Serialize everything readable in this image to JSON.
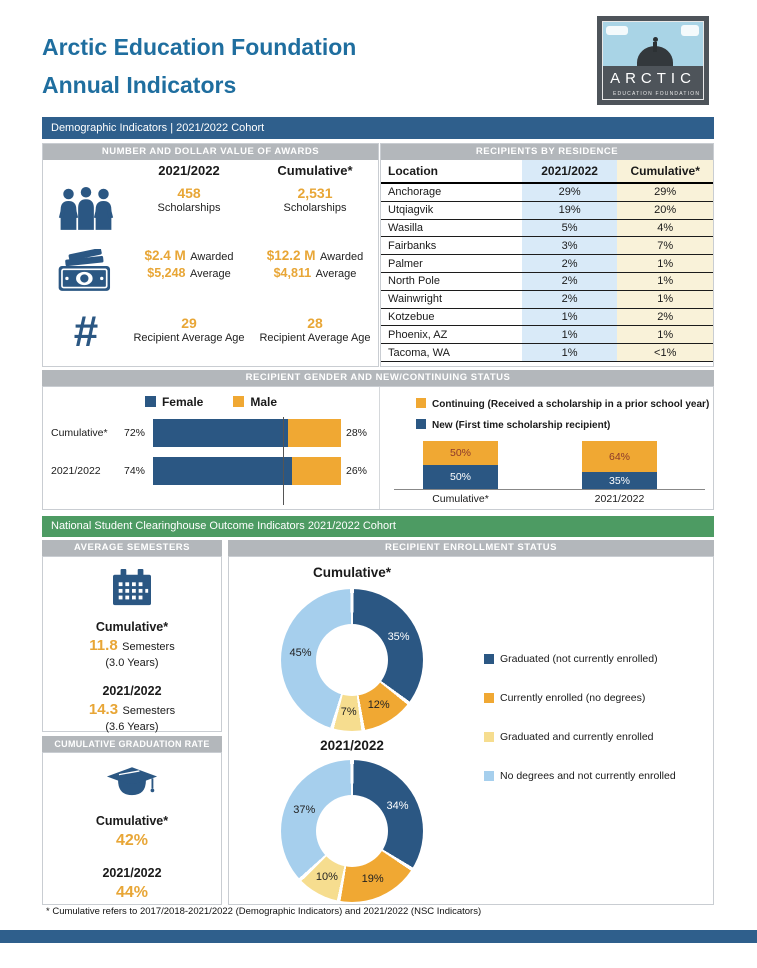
{
  "header": {
    "title_line1": "Arctic Education Foundation",
    "title_line2": "Annual Indicators",
    "logo_text": "ARCTIC",
    "logo_subtext": "EDUCATION FOUNDATION"
  },
  "banners": {
    "demographic": "Demographic Indicators | 2021/2022 Cohort",
    "gender": "RECIPIENT GENDER AND NEW/CONTINUING STATUS",
    "nsc": "National Student Clearinghouse Outcome Indicators 2021/2022 Cohort"
  },
  "awards": {
    "header": "NUMBER AND DOLLAR VALUE OF AWARDS",
    "col_current": "2021/2022",
    "col_cumulative": "Cumulative*",
    "scholarships": {
      "current_value": "458",
      "current_label": "Scholarships",
      "cumulative_value": "2,531",
      "cumulative_label": "Scholarships"
    },
    "dollars": {
      "current_amount": "$2.4 M",
      "current_amount_label": "Awarded",
      "current_avg": "$5,248",
      "current_avg_label": "Average",
      "cumulative_amount": "$12.2 M",
      "cumulative_amount_label": "Awarded",
      "cumulative_avg": "$4,811",
      "cumulative_avg_label": "Average"
    },
    "age": {
      "current_value": "29",
      "current_label": "Recipient Average Age",
      "cumulative_value": "28",
      "cumulative_label": "Recipient Average Age"
    }
  },
  "residence": {
    "header": "RECIPIENTS BY RESIDENCE",
    "columns": [
      "Location",
      "2021/2022",
      "Cumulative*"
    ],
    "rows": [
      [
        "Anchorage",
        "29%",
        "29%"
      ],
      [
        "Utqiagvik",
        "19%",
        "20%"
      ],
      [
        "Wasilla",
        "5%",
        "4%"
      ],
      [
        "Fairbanks",
        "3%",
        "7%"
      ],
      [
        "Palmer",
        "2%",
        "1%"
      ],
      [
        "North Pole",
        "2%",
        "1%"
      ],
      [
        "Wainwright",
        "2%",
        "1%"
      ],
      [
        "Kotzebue",
        "1%",
        "2%"
      ],
      [
        "Phoenix, AZ",
        "1%",
        "1%"
      ],
      [
        "Tacoma, WA",
        "1%",
        "<1%"
      ]
    ]
  },
  "avg_header": "AVERAGE SEMESTERS",
  "semesters": {
    "cum_label": "Cumulative*",
    "cum_value": "11.8",
    "cum_unit": "Semesters",
    "cum_years": "(3.0 Years)",
    "y1_label": "2021/2022",
    "y1_value": "14.3",
    "y1_unit": "Semesters",
    "y1_years": "(3.6 Years)"
  },
  "graduation": {
    "header": "CUMULATIVE GRADUATION RATE",
    "cum_label": "Cumulative*",
    "cum_value": "42%",
    "y1_label": "2021/2022",
    "y1_value": "44%"
  },
  "enrollment_header": "RECIPIENT ENROLLMENT STATUS",
  "footnote": "* Cumulative refers to 2017/2018-2021/2022 (Demographic Indicators) and 2021/2022 (NSC Indicators)",
  "colors": {
    "navy": "#2B5783",
    "gold": "#F0A833",
    "light_yellow": "#F6DD8F",
    "light_blue": "#A6CFED",
    "banner_blue": "#2F5F8C",
    "banner_green": "#4D9B63",
    "section_gray": "#B3B7BB",
    "accent_gold_text": "#E8A636",
    "title_blue": "#1F6E9F"
  },
  "chart_data": [
    {
      "id": "gender",
      "type": "bar",
      "categories": [
        "Cumulative*",
        "2021/2022"
      ],
      "series": [
        {
          "name": "Female",
          "color": "#2B5783",
          "values": [
            72,
            74
          ]
        },
        {
          "name": "Male",
          "color": "#F0A833",
          "values": [
            28,
            26
          ]
        }
      ],
      "value_suffix": "%",
      "legend_position": "top"
    },
    {
      "id": "new-continuing",
      "type": "stacked-column",
      "categories": [
        "Cumulative*",
        "2021/2022"
      ],
      "series": [
        {
          "name": "Continuing (Received a scholarship in a prior school year)",
          "color": "#F0A833",
          "label_color": "#8C3A2B",
          "values": [
            50,
            64
          ]
        },
        {
          "name": "New (First time scholarship recipient)",
          "color": "#2B5783",
          "label_color": "#FFFFFF",
          "values": [
            50,
            35
          ]
        }
      ],
      "value_suffix": "%",
      "legend_position": "top"
    },
    {
      "id": "enrollment-cumulative",
      "type": "donut",
      "title": "Cumulative*",
      "slices": [
        {
          "label": "Graduated (not currently enrolled)",
          "value": 35,
          "color": "#2B5783",
          "label_color": "#FFFFFF"
        },
        {
          "label": "Currently enrolled (no degrees)",
          "value": 12,
          "color": "#F0A833",
          "label_color": "#222222"
        },
        {
          "label": "Graduated and currently enrolled",
          "value": 7,
          "color": "#F6DD8F",
          "label_color": "#222222"
        },
        {
          "label": "No degrees and not currently enrolled",
          "value": 45,
          "color": "#A6CFED",
          "label_color": "#222222"
        }
      ]
    },
    {
      "id": "enrollment-2021-2022",
      "type": "donut",
      "title": "2021/2022",
      "slices": [
        {
          "label": "Graduated (not currently enrolled)",
          "value": 34,
          "color": "#2B5783",
          "label_color": "#FFFFFF"
        },
        {
          "label": "Currently enrolled (no degrees)",
          "value": 19,
          "color": "#F0A833",
          "label_color": "#222222"
        },
        {
          "label": "Graduated and currently enrolled",
          "value": 10,
          "color": "#F6DD8F",
          "label_color": "#222222"
        },
        {
          "label": "No degrees and not currently enrolled",
          "value": 37,
          "color": "#A6CFED",
          "label_color": "#222222"
        }
      ]
    }
  ]
}
